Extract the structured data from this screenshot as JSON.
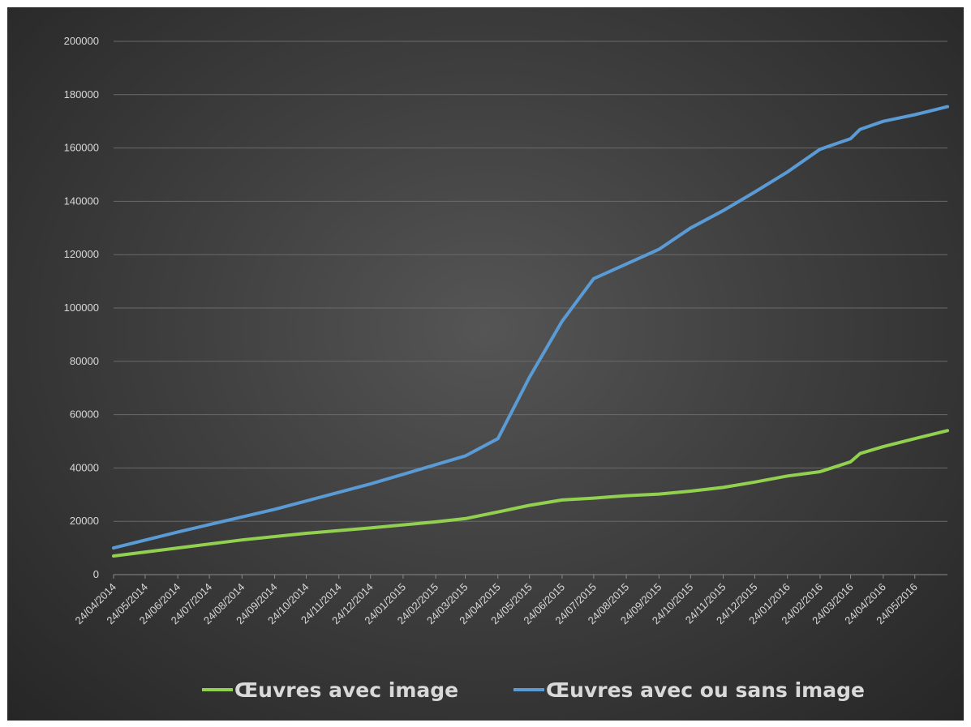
{
  "chart_data": {
    "type": "line",
    "title": "",
    "xlabel": "",
    "ylabel": "",
    "ylim": [
      0,
      200000
    ],
    "y_ticks": [
      0,
      20000,
      40000,
      60000,
      80000,
      100000,
      120000,
      140000,
      160000,
      180000,
      200000
    ],
    "x_tick_labels": [
      "24/04/2014",
      "24/05/2014",
      "24/06/2014",
      "24/07/2014",
      "24/08/2014",
      "24/09/2014",
      "24/10/2014",
      "24/11/2014",
      "24/12/2014",
      "24/01/2015",
      "24/02/2015",
      "24/03/2015",
      "24/04/2015",
      "24/05/2015",
      "24/06/2015",
      "24/07/2015",
      "24/08/2015",
      "24/09/2015",
      "24/10/2015",
      "24/11/2015",
      "24/12/2015",
      "24/01/2016",
      "24/02/2016",
      "24/03/2016",
      "24/04/2016",
      "24/05/2016"
    ],
    "x_range": [
      "2014-04-24",
      "2016-06-24"
    ],
    "grid": true,
    "legend_position": "bottom",
    "series": [
      {
        "name": "Œuvres avec image",
        "color": "#92d050",
        "points": [
          [
            "2014-04-24",
            7000
          ],
          [
            "2014-06-24",
            10000
          ],
          [
            "2014-08-24",
            13000
          ],
          [
            "2014-10-24",
            15500
          ],
          [
            "2014-12-24",
            17500
          ],
          [
            "2015-02-24",
            19800
          ],
          [
            "2015-03-24",
            21000
          ],
          [
            "2015-04-24",
            23500
          ],
          [
            "2015-05-24",
            26000
          ],
          [
            "2015-06-24",
            28000
          ],
          [
            "2015-07-24",
            28700
          ],
          [
            "2015-08-24",
            29600
          ],
          [
            "2015-09-24",
            30200
          ],
          [
            "2015-10-24",
            31300
          ],
          [
            "2015-11-24",
            32700
          ],
          [
            "2015-12-24",
            34700
          ],
          [
            "2016-01-24",
            37000
          ],
          [
            "2016-02-24",
            38600
          ],
          [
            "2016-03-24",
            42300
          ],
          [
            "2016-04-02",
            45400
          ],
          [
            "2016-04-24",
            48000
          ],
          [
            "2016-05-24",
            51000
          ],
          [
            "2016-06-24",
            54000
          ]
        ]
      },
      {
        "name": "Œuvres avec ou sans image",
        "color": "#5b9bd5",
        "points": [
          [
            "2014-04-24",
            10000
          ],
          [
            "2014-06-24",
            16000
          ],
          [
            "2014-09-24",
            24500
          ],
          [
            "2014-12-24",
            34000
          ],
          [
            "2015-03-24",
            44500
          ],
          [
            "2015-04-24",
            51000
          ],
          [
            "2015-05-24",
            74000
          ],
          [
            "2015-06-24",
            95000
          ],
          [
            "2015-07-24",
            111000
          ],
          [
            "2015-08-10",
            114000
          ],
          [
            "2015-09-24",
            122000
          ],
          [
            "2015-10-24",
            130000
          ],
          [
            "2015-11-24",
            136500
          ],
          [
            "2015-12-24",
            143500
          ],
          [
            "2016-01-24",
            151000
          ],
          [
            "2016-02-24",
            159500
          ],
          [
            "2016-03-24",
            163500
          ],
          [
            "2016-04-02",
            167000
          ],
          [
            "2016-04-24",
            170000
          ],
          [
            "2016-05-24",
            172500
          ],
          [
            "2016-06-24",
            175500
          ]
        ]
      }
    ]
  }
}
